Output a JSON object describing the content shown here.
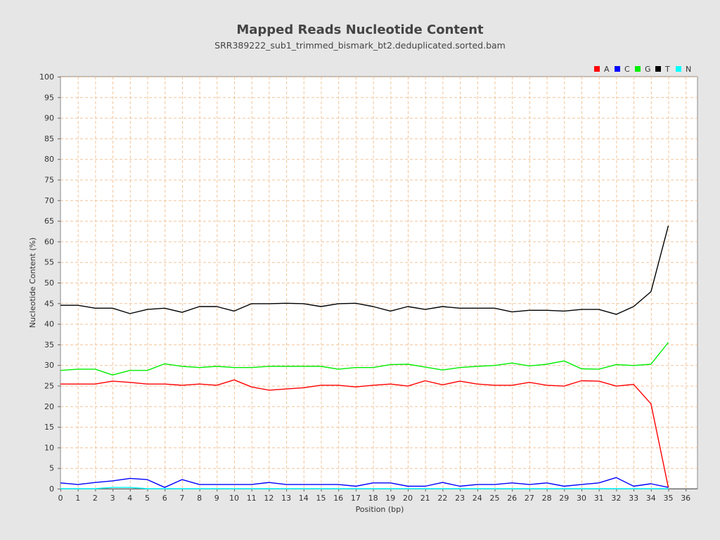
{
  "chart_data": {
    "type": "line",
    "title": "Mapped Reads Nucleotide Content",
    "subtitle": "SRR389222_sub1_trimmed_bismark_bt2.deduplicated.sorted.bam",
    "xlabel": "Position (bp)",
    "ylabel": "Nucleotide Content (%)",
    "xlim": [
      0,
      36.5
    ],
    "ylim": [
      0,
      100
    ],
    "x_ticks": [
      0,
      1,
      2,
      3,
      4,
      5,
      6,
      7,
      8,
      9,
      10,
      11,
      12,
      13,
      14,
      15,
      16,
      17,
      18,
      19,
      20,
      21,
      22,
      23,
      24,
      25,
      26,
      27,
      28,
      29,
      30,
      31,
      32,
      33,
      34,
      35,
      36
    ],
    "y_ticks": [
      0,
      5,
      10,
      15,
      20,
      25,
      30,
      35,
      40,
      45,
      50,
      55,
      60,
      65,
      70,
      75,
      80,
      85,
      90,
      95,
      100
    ],
    "grid": true,
    "legend_position": "top-right",
    "x": [
      0,
      1,
      2,
      3,
      4,
      5,
      6,
      7,
      8,
      9,
      10,
      11,
      12,
      13,
      14,
      15,
      16,
      17,
      18,
      19,
      20,
      21,
      22,
      23,
      24,
      25,
      26,
      27,
      28,
      29,
      30,
      31,
      32,
      33,
      34,
      35
    ],
    "series": [
      {
        "name": "A",
        "color": "#ff0000",
        "values": [
          25.4,
          25.4,
          25.4,
          26.1,
          25.8,
          25.4,
          25.4,
          25.1,
          25.4,
          25.1,
          26.4,
          24.7,
          23.9,
          24.2,
          24.5,
          25.1,
          25.1,
          24.7,
          25.1,
          25.4,
          24.9,
          26.2,
          25.2,
          26.1,
          25.4,
          25.1,
          25.1,
          25.8,
          25.1,
          24.9,
          26.2,
          26.1,
          24.9,
          25.3,
          20.6,
          0.3
        ]
      },
      {
        "name": "C",
        "color": "#0000ff",
        "values": [
          1.4,
          1.0,
          1.5,
          1.9,
          2.5,
          2.2,
          0.3,
          2.2,
          1.0,
          1.0,
          1.0,
          1.0,
          1.5,
          1.0,
          1.0,
          1.0,
          1.0,
          0.6,
          1.4,
          1.4,
          0.6,
          0.6,
          1.5,
          0.6,
          1.0,
          1.0,
          1.4,
          1.0,
          1.4,
          0.6,
          1.0,
          1.4,
          2.7,
          0.6,
          1.2,
          0.3
        ]
      },
      {
        "name": "G",
        "color": "#00ee00",
        "values": [
          28.7,
          29.0,
          29.0,
          27.6,
          28.7,
          28.7,
          30.3,
          29.7,
          29.4,
          29.7,
          29.4,
          29.4,
          29.7,
          29.7,
          29.7,
          29.7,
          29.0,
          29.4,
          29.4,
          30.1,
          30.2,
          29.5,
          28.8,
          29.4,
          29.7,
          29.9,
          30.5,
          29.8,
          30.2,
          31.0,
          29.1,
          29.0,
          30.1,
          29.9,
          30.2,
          35.5
        ]
      },
      {
        "name": "T",
        "color": "#000000",
        "values": [
          44.5,
          44.5,
          43.8,
          43.8,
          42.5,
          43.5,
          43.8,
          42.8,
          44.2,
          44.2,
          43.1,
          44.9,
          44.9,
          45.0,
          44.9,
          44.2,
          44.9,
          45.0,
          44.2,
          43.1,
          44.2,
          43.5,
          44.2,
          43.8,
          43.8,
          43.8,
          42.9,
          43.3,
          43.3,
          43.1,
          43.5,
          43.5,
          42.3,
          44.2,
          47.8,
          63.8
        ]
      },
      {
        "name": "N",
        "color": "#00ffff",
        "values": [
          0,
          0,
          0,
          0.3,
          0.3,
          0,
          0,
          0,
          0,
          0,
          0,
          0,
          0,
          0,
          0,
          0,
          0,
          0,
          0,
          0,
          0,
          0,
          0,
          0,
          0,
          0,
          0,
          0,
          0,
          0,
          0,
          0,
          0,
          0,
          0,
          0
        ]
      }
    ]
  }
}
